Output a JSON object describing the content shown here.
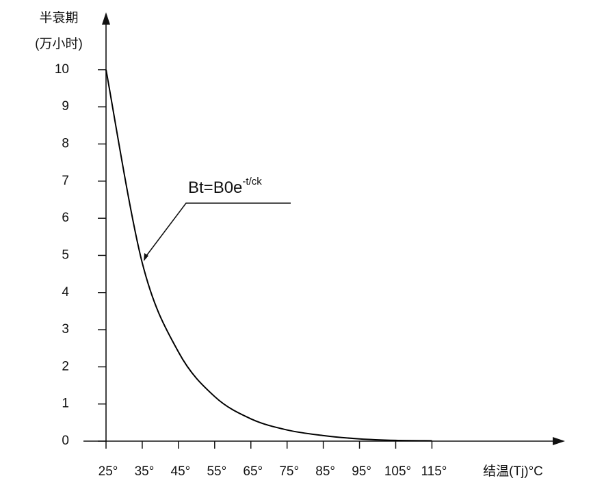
{
  "chart_data": {
    "type": "line",
    "y_label_lines": [
      "半衰期",
      "(万小时)"
    ],
    "x_label": "结温(Tj)°C",
    "annotation": {
      "text": "Bt=B0e",
      "superscript": "-t/ck"
    },
    "x": [
      25,
      35,
      45,
      55,
      65,
      75,
      85,
      95,
      105,
      115
    ],
    "values": [
      10,
      4.8,
      2.4,
      1.2,
      0.6,
      0.3,
      0.15,
      0.06,
      0.02,
      0.01
    ],
    "color": "#000000",
    "xlim": [
      25,
      151
    ],
    "xticks": [
      {
        "value": 25,
        "label": "25°"
      },
      {
        "value": 35,
        "label": "35°"
      },
      {
        "value": 45,
        "label": "45°"
      },
      {
        "value": 55,
        "label": "55°"
      },
      {
        "value": 65,
        "label": "65°"
      },
      {
        "value": 75,
        "label": "75°"
      },
      {
        "value": 85,
        "label": "85°"
      },
      {
        "value": 95,
        "label": "95°"
      },
      {
        "value": 105,
        "label": "105°"
      },
      {
        "value": 115,
        "label": "115°"
      }
    ],
    "ylim": [
      0,
      11.6
    ],
    "yticks": [
      0,
      1,
      2,
      3,
      4,
      5,
      6,
      7,
      8,
      9,
      10
    ],
    "grid": false
  }
}
